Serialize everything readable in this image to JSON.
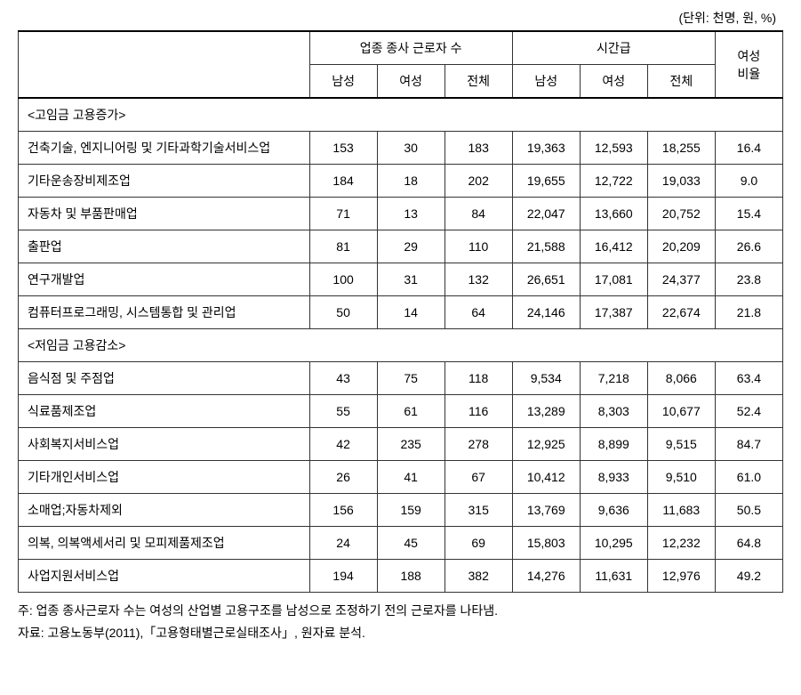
{
  "unit_label": "(단위: 천명, 원, %)",
  "headers": {
    "group1": "업종 종사 근로자 수",
    "group2": "시간급",
    "ratio": "여성\n비율",
    "male": "남성",
    "female": "여성",
    "total": "전체"
  },
  "sections": [
    {
      "title": "<고임금 고용증가>",
      "rows": [
        {
          "label": "건축기술, 엔지니어링 및 기타과학기술서비스업",
          "v": [
            "153",
            "30",
            "183",
            "19,363",
            "12,593",
            "18,255",
            "16.4"
          ]
        },
        {
          "label": "기타운송장비제조업",
          "v": [
            "184",
            "18",
            "202",
            "19,655",
            "12,722",
            "19,033",
            "9.0"
          ]
        },
        {
          "label": "자동차 및 부품판매업",
          "v": [
            "71",
            "13",
            "84",
            "22,047",
            "13,660",
            "20,752",
            "15.4"
          ]
        },
        {
          "label": "출판업",
          "v": [
            "81",
            "29",
            "110",
            "21,588",
            "16,412",
            "20,209",
            "26.6"
          ]
        },
        {
          "label": "연구개발업",
          "v": [
            "100",
            "31",
            "132",
            "26,651",
            "17,081",
            "24,377",
            "23.8"
          ]
        },
        {
          "label": "컴퓨터프로그래밍, 시스템통합 및 관리업",
          "v": [
            "50",
            "14",
            "64",
            "24,146",
            "17,387",
            "22,674",
            "21.8"
          ]
        }
      ]
    },
    {
      "title": "<저임금 고용감소>",
      "rows": [
        {
          "label": "음식점 및 주점업",
          "v": [
            "43",
            "75",
            "118",
            "9,534",
            "7,218",
            "8,066",
            "63.4"
          ]
        },
        {
          "label": "식료품제조업",
          "v": [
            "55",
            "61",
            "116",
            "13,289",
            "8,303",
            "10,677",
            "52.4"
          ]
        },
        {
          "label": "사회복지서비스업",
          "v": [
            "42",
            "235",
            "278",
            "12,925",
            "8,899",
            "9,515",
            "84.7"
          ]
        },
        {
          "label": "기타개인서비스업",
          "v": [
            "26",
            "41",
            "67",
            "10,412",
            "8,933",
            "9,510",
            "61.0"
          ]
        },
        {
          "label": "소매업;자동차제외",
          "v": [
            "156",
            "159",
            "315",
            "13,769",
            "9,636",
            "11,683",
            "50.5"
          ]
        },
        {
          "label": "의복, 의복액세서리 및 모피제품제조업",
          "v": [
            "24",
            "45",
            "69",
            "15,803",
            "10,295",
            "12,232",
            "64.8"
          ]
        },
        {
          "label": "사업지원서비스업",
          "v": [
            "194",
            "188",
            "382",
            "14,276",
            "11,631",
            "12,976",
            "49.2"
          ]
        }
      ]
    }
  ],
  "notes": {
    "note1": "주: 업종 종사근로자 수는 여성의 산업별 고용구조를 남성으로 조정하기 전의 근로자를 나타냄.",
    "note2": "자료: 고용노동부(2011),「고용형태별근로실태조사」, 원자료 분석."
  },
  "style": {
    "font_size": 14,
    "border_color": "#333333",
    "thick_border_color": "#000000",
    "background_color": "#ffffff"
  }
}
